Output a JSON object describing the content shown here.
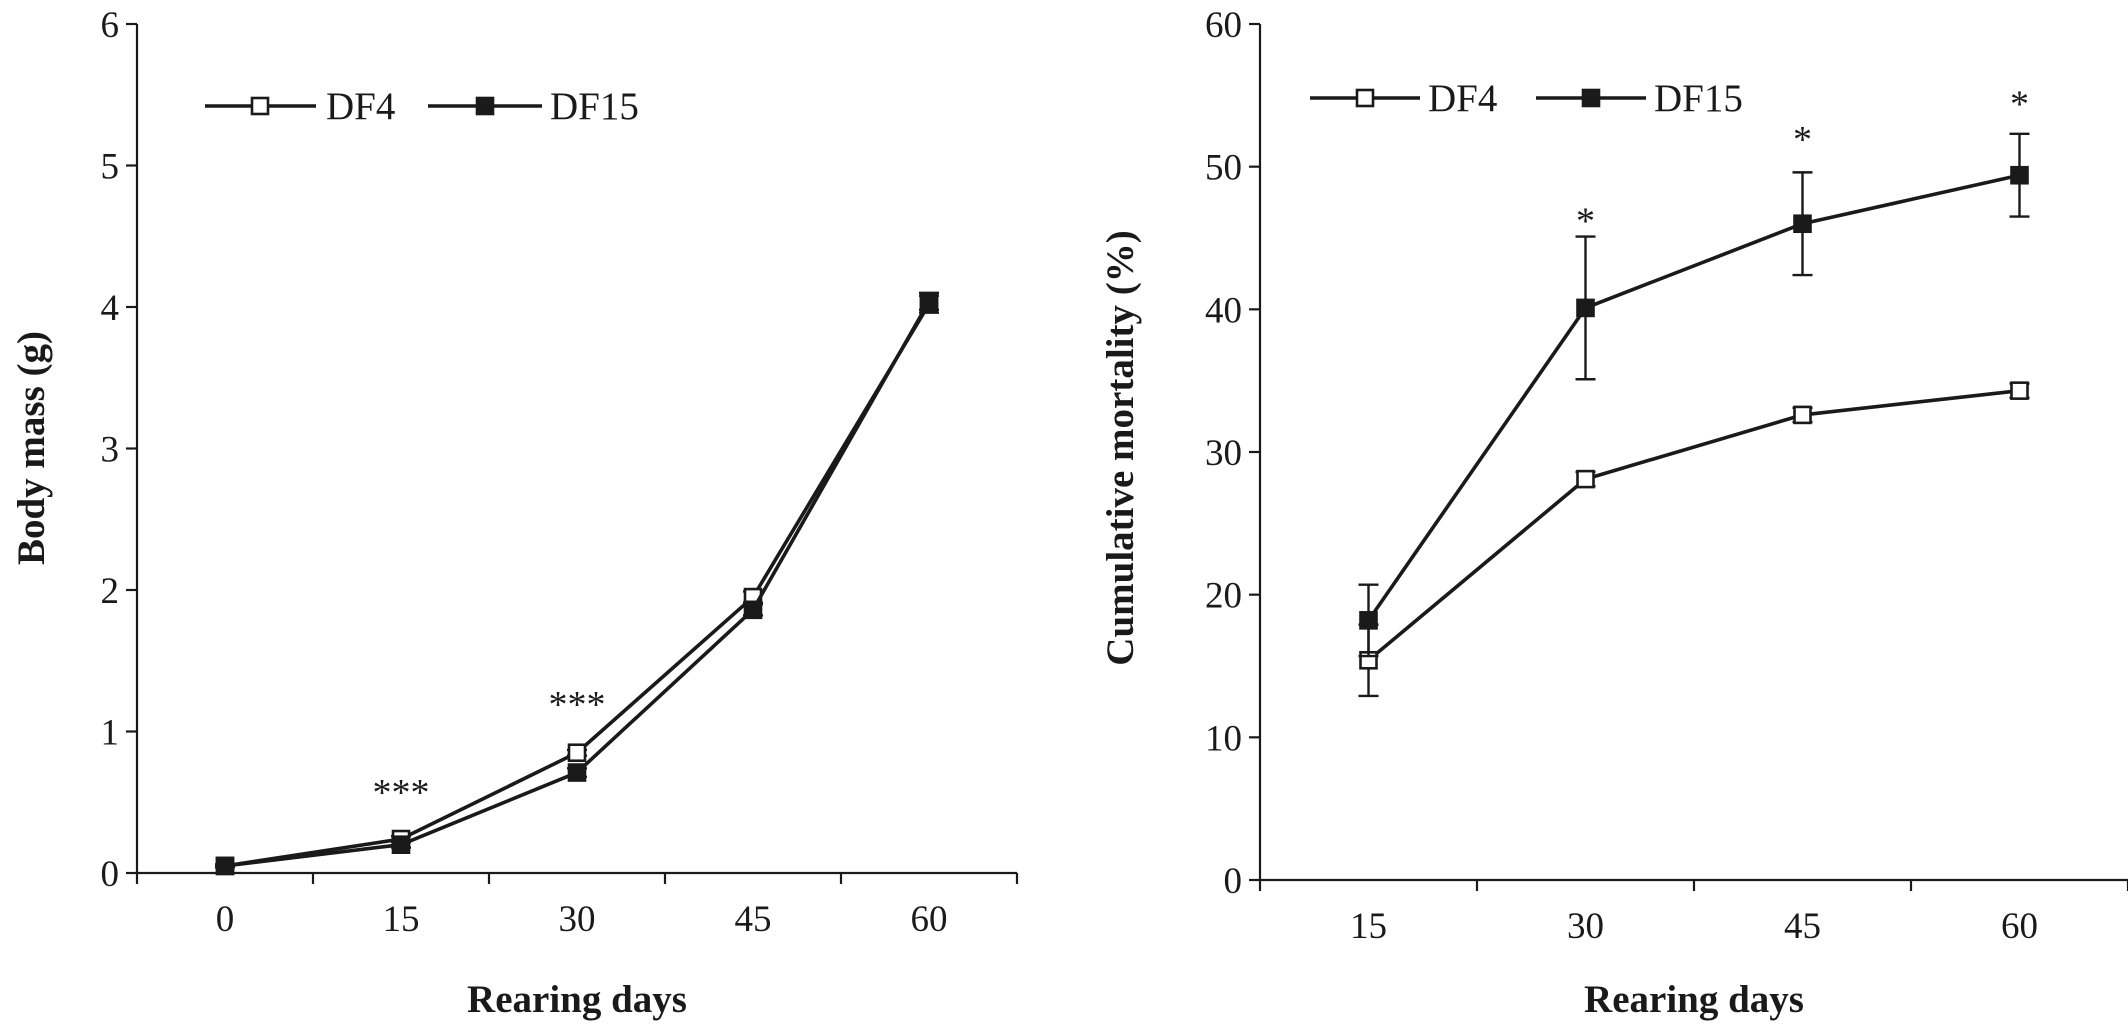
{
  "chart_data": [
    {
      "type": "line",
      "xlabel": "Rearing days",
      "ylabel": "Body mass (g)",
      "x": [
        0,
        15,
        30,
        45,
        60
      ],
      "xlim": [
        -7.5,
        67.5
      ],
      "ylim": [
        0,
        6
      ],
      "yticks": [
        0,
        1,
        2,
        3,
        4,
        5,
        6
      ],
      "grid": false,
      "legend": "top-left",
      "series": [
        {
          "name": "DF4",
          "marker": "open-square",
          "values": [
            0.05,
            0.24,
            0.85,
            1.95,
            4.02
          ],
          "err": [
            0.01,
            0.02,
            0.02,
            0.04,
            0.06
          ]
        },
        {
          "name": "DF15",
          "marker": "filled-square",
          "values": [
            0.05,
            0.2,
            0.71,
            1.86,
            4.04
          ],
          "err": [
            0.01,
            0.02,
            0.03,
            0.04,
            0.06
          ]
        }
      ],
      "annotations": [
        {
          "x": 15,
          "y": 0.58,
          "text": "***"
        },
        {
          "x": 30,
          "y": 1.2,
          "text": "***"
        }
      ]
    },
    {
      "type": "line",
      "xlabel": "Rearing days",
      "ylabel": "Cumulative mortality (%)",
      "x": [
        15,
        30,
        45,
        60
      ],
      "xlim": [
        7.5,
        67.5
      ],
      "ylim": [
        0,
        60
      ],
      "yticks": [
        0,
        10,
        20,
        30,
        40,
        50,
        60
      ],
      "grid": false,
      "legend": "top-left",
      "series": [
        {
          "name": "DF4",
          "marker": "open-square",
          "values": [
            15.4,
            28.1,
            32.6,
            34.3
          ],
          "err": [
            2.5,
            0.5,
            0.5,
            0.5
          ]
        },
        {
          "name": "DF15",
          "marker": "filled-square",
          "values": [
            18.2,
            40.1,
            46.0,
            49.4
          ],
          "err": [
            2.5,
            5.0,
            3.6,
            2.9
          ]
        }
      ],
      "annotations": [
        {
          "x": 30,
          "y": 46.3,
          "text": "*"
        },
        {
          "x": 45,
          "y": 52.0,
          "text": "*"
        },
        {
          "x": 60,
          "y": 54.5,
          "text": "*"
        }
      ]
    }
  ]
}
